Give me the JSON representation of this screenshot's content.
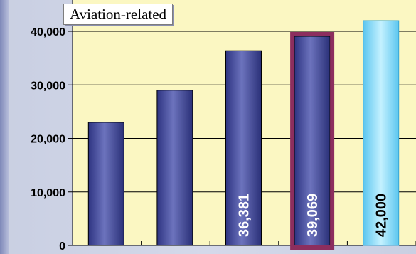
{
  "chart_data": {
    "type": "bar",
    "title": "Aviation-related",
    "xlabel": "",
    "ylabel": "",
    "ylim": [
      0,
      40000
    ],
    "yticks": [
      "0",
      "10,000",
      "20,000",
      "30,000",
      "40,000"
    ],
    "ytick_values": [
      0,
      10000,
      20000,
      30000,
      40000
    ],
    "grid": true,
    "series": [
      {
        "values": [
          23000,
          29000,
          36381,
          39069,
          42000
        ],
        "data_labels": [
          "",
          "",
          "36,381",
          "39,069",
          "42,000"
        ]
      }
    ],
    "highlighted_index": 3,
    "projected_index": 4,
    "colors": {
      "bar": "#4d559f",
      "bar_light": "#8088cc",
      "highlight_border": "#8c2e5e",
      "projected": "#79d8f5",
      "projected_light": "#c6f2ff",
      "plot_bg": "#fbf7c2",
      "grid": "#000000"
    }
  }
}
